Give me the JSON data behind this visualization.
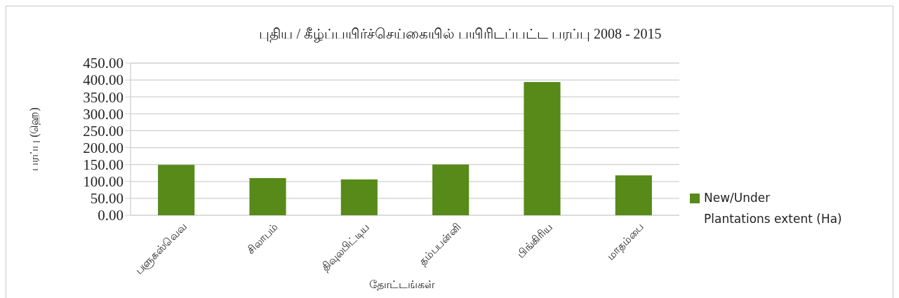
{
  "chart_data": {
    "type": "bar",
    "title": "புதிய  /  கீழ்ப்பயிர்ச்செய்கையில்  பயிரிடப்பட்ட  பரப்பு    2008  -  2015",
    "xlabel": "தோட்டங்கள்",
    "ylabel": "பரப்பு  (ஹெ)",
    "categories": [
      "பளுகஸ்வெவ",
      "சிலாபம்",
      "திவுலபிட்டிய",
      "தம்பபன்னி",
      "பிங்கிரிய",
      "மாதம்பை"
    ],
    "series": [
      {
        "name": "New/Under Plantations extent (Ha)",
        "color": "#578a19",
        "values": [
          149,
          110,
          106,
          150,
          394,
          118
        ]
      }
    ],
    "ylim": [
      0,
      450
    ],
    "yticks": [
      {
        "value": 0,
        "label": "0.00"
      },
      {
        "value": 50,
        "label": "50.00"
      },
      {
        "value": 100,
        "label": "100.00"
      },
      {
        "value": 150,
        "label": "150.00"
      },
      {
        "value": 200,
        "label": "200.00"
      },
      {
        "value": 250,
        "label": "250.00"
      },
      {
        "value": 300,
        "label": "300.00"
      },
      {
        "value": 350,
        "label": "350.00"
      },
      {
        "value": 400,
        "label": "400.00"
      },
      {
        "value": 450,
        "label": "450.00"
      }
    ],
    "grid": "y",
    "legend": "right"
  }
}
